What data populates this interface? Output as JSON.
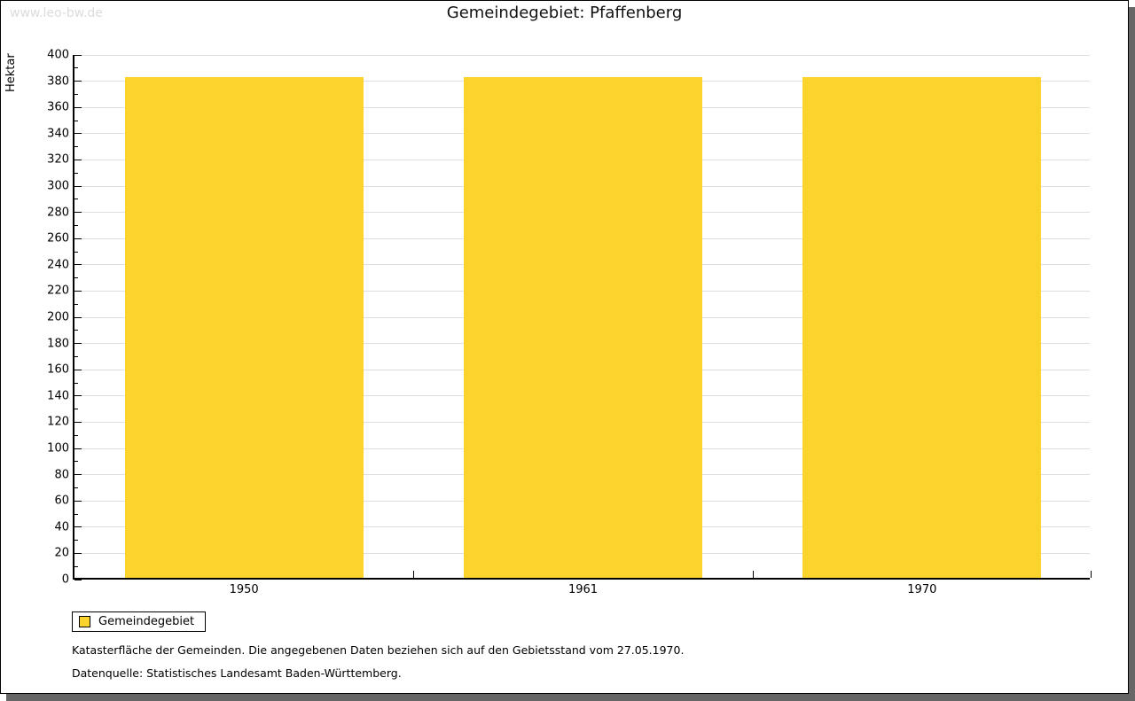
{
  "watermark": "www.leo-bw.de",
  "header": {
    "title": "Gemeindegebiet: Pfaffenberg"
  },
  "legend": {
    "label": "Gemeindegebiet"
  },
  "notes": {
    "footnote": "Katasterfläche der Gemeinden. Die angegebenen Daten beziehen sich auf den Gebietsstand vom 27.05.1970.",
    "source": "Datenquelle: Statistisches Landesamt Baden-Württemberg."
  },
  "colors": {
    "bar": "#FCD42D",
    "grid": "#DEDEDE",
    "axis": "#000000",
    "watermark": "#DCDCDC",
    "frame_shadow": "#666666"
  },
  "chart_data": {
    "type": "bar",
    "title": "Gemeindegebiet: Pfaffenberg",
    "categories": [
      "1950",
      "1961",
      "1970"
    ],
    "series": [
      {
        "name": "Gemeindegebiet",
        "values": [
          382,
          382,
          382
        ]
      }
    ],
    "xlabel": "",
    "ylabel": "Hektar",
    "ylim": [
      0,
      400
    ],
    "ytick_major": 20,
    "ytick_minor": 10,
    "grid": "horizontal-major",
    "legend_position": "below-left",
    "bar_color": "#FCD42D"
  }
}
